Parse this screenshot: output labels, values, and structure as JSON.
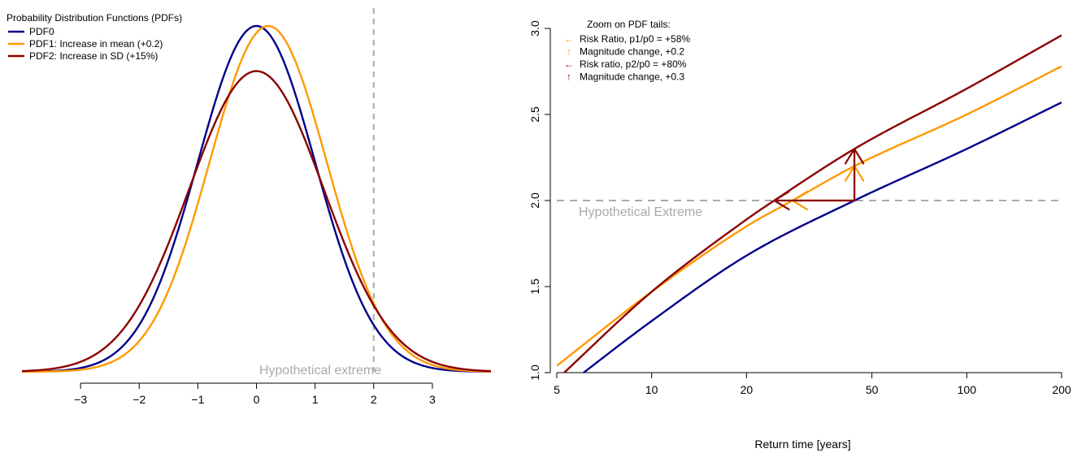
{
  "colors": {
    "pdf0": "#00008B",
    "pdf1": "#FF9900",
    "pdf2": "#8B0000",
    "extreme": "#AAAAAA"
  },
  "chart_data": [
    {
      "type": "line",
      "title": "",
      "xlabel": "",
      "ylabel": "",
      "xlim": [
        -4,
        4
      ],
      "x_ticks": [
        "−3",
        "−2",
        "−1",
        "0",
        "1",
        "2",
        "3"
      ],
      "legend": {
        "title": "Probability Distribution Functions (PDFs)",
        "position": "top-left",
        "entries": [
          "PDF0",
          "PDF1: Increase in mean (+0.2)",
          "PDF2: Increase in SD (+15%)"
        ]
      },
      "series": [
        {
          "name": "PDF0",
          "mean": 0,
          "sd": 1,
          "color": "pdf0"
        },
        {
          "name": "PDF1: Increase in mean (+0.2)",
          "mean": 0.2,
          "sd": 1,
          "color": "pdf1"
        },
        {
          "name": "PDF2: Increase in SD (+15%)",
          "mean": 0,
          "sd": 1.15,
          "color": "pdf2"
        }
      ],
      "reference_line": {
        "x": 2,
        "style": "dashed",
        "label": "Hypothetical extreme"
      }
    },
    {
      "type": "line",
      "title": "",
      "xlabel": "Return time [years]",
      "ylabel": "",
      "x_scale": "log",
      "xlim": [
        5,
        200
      ],
      "ylim": [
        1.0,
        3.0
      ],
      "x_ticks": [
        "5",
        "10",
        "20",
        "50",
        "100",
        "200"
      ],
      "y_ticks": [
        "1.0",
        "1.5",
        "2.0",
        "2.5",
        "3.0"
      ],
      "series": [
        {
          "name": "PDF0",
          "color": "pdf0",
          "x": [
            5,
            10,
            20,
            44,
            100,
            200
          ],
          "y": [
            0.88,
            1.3,
            1.68,
            2.0,
            2.3,
            2.57
          ]
        },
        {
          "name": "PDF1",
          "color": "pdf1",
          "x": [
            5,
            10,
            20,
            28,
            44,
            100,
            200
          ],
          "y": [
            1.04,
            1.47,
            1.85,
            2.0,
            2.2,
            2.5,
            2.78
          ]
        },
        {
          "name": "PDF2",
          "color": "pdf2",
          "x": [
            5,
            10,
            20,
            24.5,
            44,
            100,
            200
          ],
          "y": [
            0.96,
            1.47,
            1.89,
            2.0,
            2.3,
            2.65,
            2.96
          ]
        }
      ],
      "reference_line": {
        "y": 2.0,
        "style": "dashed",
        "label": "Hypothetical Extreme"
      },
      "annotations": [
        {
          "type": "arrow",
          "color": "pdf1",
          "from": [
            44,
            2.0
          ],
          "to": [
            28,
            2.0
          ]
        },
        {
          "type": "arrow",
          "color": "pdf1",
          "from": [
            44,
            2.0
          ],
          "to": [
            44,
            2.2
          ]
        },
        {
          "type": "arrow",
          "color": "pdf2",
          "from": [
            44,
            2.0
          ],
          "to": [
            24.5,
            2.0
          ]
        },
        {
          "type": "arrow",
          "color": "pdf2",
          "from": [
            44,
            2.0
          ],
          "to": [
            44,
            2.3
          ]
        }
      ],
      "legend": {
        "title": "Zoom on PDF tails:",
        "position": "top-left",
        "entries": [
          {
            "symbol": "←",
            "color": "pdf1",
            "text": "Risk Ratio, p1/p0 = +58%"
          },
          {
            "symbol": "↑",
            "color": "pdf1",
            "text": "Magnitude change, +0.2"
          },
          {
            "symbol": "←",
            "color": "pdf2",
            "text": "Risk ratio, p2/p0 = +80%"
          },
          {
            "symbol": "↑",
            "color": "pdf2",
            "text": "Magnitude change, +0.3"
          }
        ]
      }
    }
  ]
}
